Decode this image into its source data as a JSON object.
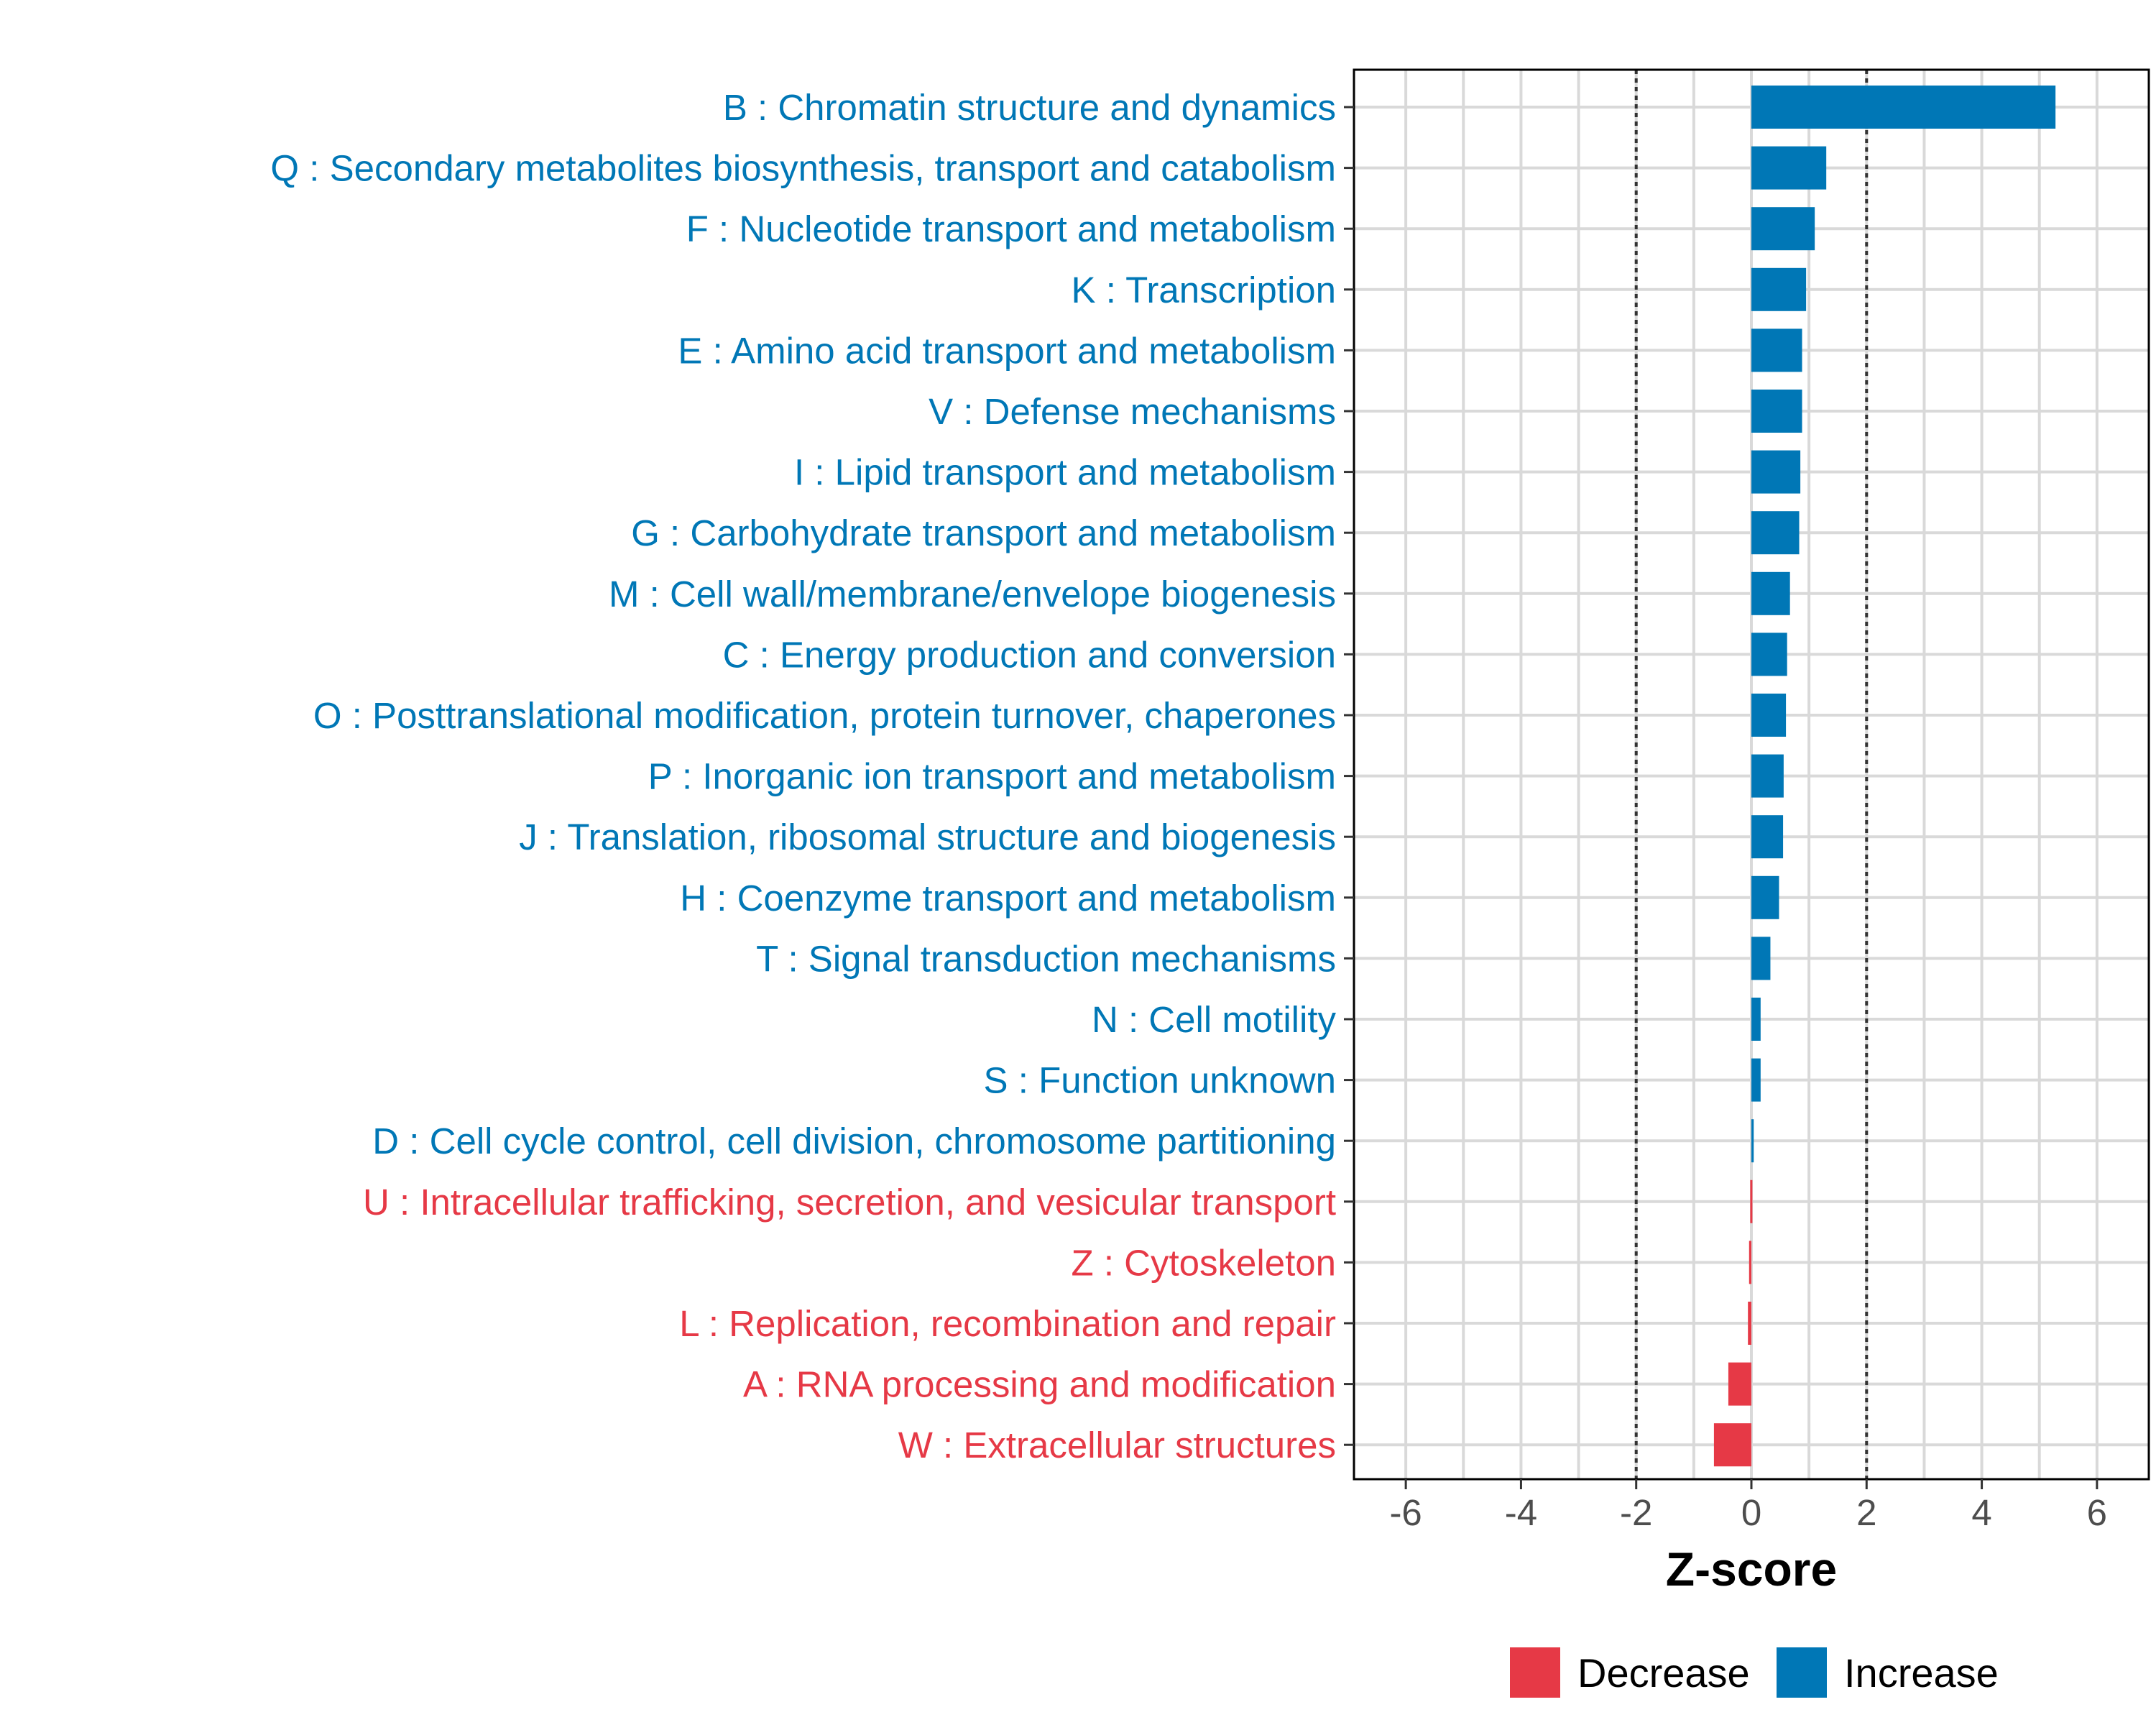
{
  "chart_data": {
    "type": "bar",
    "orientation": "horizontal",
    "xlabel": "Z-score",
    "ylabel": "",
    "xlim": [
      -6.9,
      6.9
    ],
    "xticks": [
      -6,
      -4,
      -2,
      0,
      2,
      4,
      6
    ],
    "reference_lines": [
      -2,
      2
    ],
    "grid": true,
    "categories": [
      "B : Chromatin structure and dynamics",
      "Q : Secondary metabolites biosynthesis, transport and catabolism",
      "F : Nucleotide transport and metabolism",
      "K : Transcription",
      "E : Amino acid transport and metabolism",
      "V : Defense mechanisms",
      "I : Lipid transport and metabolism",
      "G : Carbohydrate transport and metabolism",
      "M : Cell wall/membrane/envelope biogenesis",
      "C : Energy production and conversion",
      "O : Posttranslational modification, protein turnover, chaperones",
      "P : Inorganic ion transport and metabolism",
      "J : Translation, ribosomal structure and biogenesis",
      "H : Coenzyme transport and metabolism",
      "T : Signal transduction mechanisms",
      "N : Cell motility",
      "S : Function unknown",
      "D : Cell cycle control, cell division, chromosome partitioning",
      "U : Intracellular trafficking, secretion, and vesicular transport",
      "Z : Cytoskeleton",
      "L : Replication, recombination and repair",
      "A : RNA processing and modification",
      "W : Extracellular structures"
    ],
    "values": [
      5.28,
      1.3,
      1.1,
      0.95,
      0.88,
      0.88,
      0.85,
      0.83,
      0.67,
      0.62,
      0.6,
      0.56,
      0.55,
      0.48,
      0.33,
      0.16,
      0.16,
      0.04,
      -0.02,
      -0.04,
      -0.06,
      -0.4,
      -0.65
    ],
    "legend": {
      "placement": "bottom",
      "entries": [
        {
          "name": "Decrease",
          "color": "#e63946"
        },
        {
          "name": "Increase",
          "color": "#0077b6"
        }
      ]
    }
  },
  "colors": {
    "increase": "#0077b6",
    "decrease": "#e63946",
    "grid": "#d9d9d9",
    "panel_border": "#000000"
  }
}
